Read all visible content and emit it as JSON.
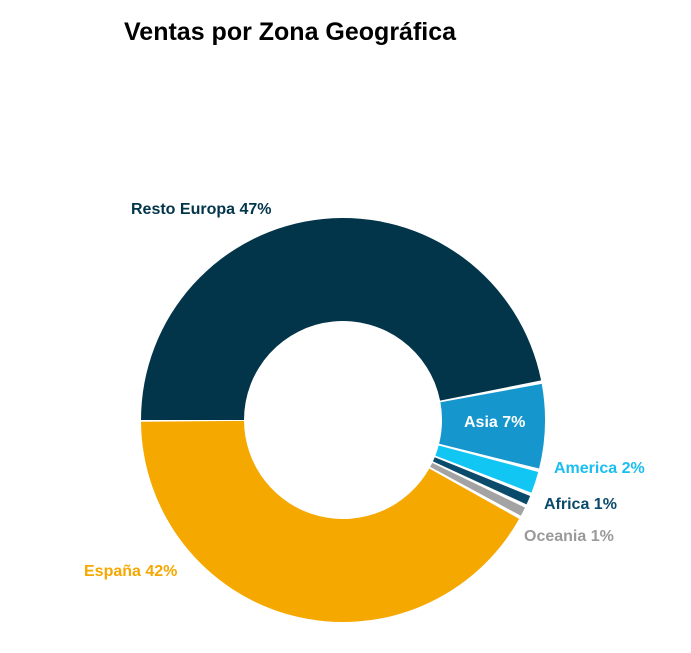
{
  "chart_data": {
    "type": "pie",
    "title": "Ventas por Zona Geográfica",
    "donut": true,
    "slices": [
      {
        "name": "Resto Europa",
        "value": 47,
        "label": "Resto Europa 47%",
        "color": "#03354A",
        "label_color": "#03354A"
      },
      {
        "name": "Asia",
        "value": 7,
        "label": "Asia 7%",
        "color": "#1596CC",
        "label_color": "#FFFFFF"
      },
      {
        "name": "America",
        "value": 2,
        "label": "America 2%",
        "color": "#12C6F3",
        "label_color": "#1ABEF0"
      },
      {
        "name": "Africa",
        "value": 1,
        "label": "Africa 1%",
        "color": "#0A4A6A",
        "label_color": "#0A4A6A"
      },
      {
        "name": "Oceania",
        "value": 1,
        "label": "Oceania 1%",
        "color": "#A3A3A3",
        "label_color": "#9A9A9A"
      },
      {
        "name": "España",
        "value": 42,
        "label": "España 42%",
        "color": "#F5A800",
        "label_color": "#F5A800"
      }
    ]
  }
}
